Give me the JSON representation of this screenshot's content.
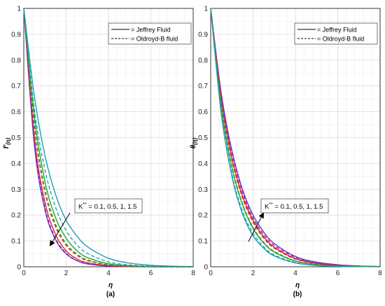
{
  "figure": {
    "panels": [
      {
        "id": "a",
        "caption": "(a)",
        "xlabel": "η",
        "ylabel_main": "f'",
        "ylabel_sub": "(η)",
        "annotation": {
          "text_base": "K",
          "text_sup": "**",
          "text_rest": " = 0.1, 0.5, 1, 1.5"
        }
      },
      {
        "id": "b",
        "caption": "(b)",
        "xlabel": "η",
        "ylabel_main": "θ",
        "ylabel_sub": "(η)",
        "annotation": {
          "text_base": "K",
          "text_sup": "**",
          "text_rest": " = 0.1, 0.5, 1, 1.5"
        }
      }
    ],
    "legend": {
      "entries": [
        {
          "label": "= Jeffrey Fluid",
          "style": "solid"
        },
        {
          "label": "= Oldroyd-B fluid",
          "style": "dashed"
        }
      ]
    },
    "colors": {
      "k1": "#7b2fbf",
      "k2": "#d62728",
      "k3": "#2ca02c",
      "k4": "#1f9fb4",
      "axis": "#333333",
      "grid": "#dddddd"
    }
  },
  "chart_data": [
    {
      "type": "line",
      "panel": "a",
      "xlabel": "η",
      "ylabel": "f'(η)",
      "xlim": [
        0,
        8
      ],
      "ylim": [
        0,
        1
      ],
      "xticks": [
        0,
        2,
        4,
        6,
        8
      ],
      "yticks": [
        0,
        0.1,
        0.2,
        0.3,
        0.4,
        0.5,
        0.6,
        0.7,
        0.8,
        0.9,
        1
      ],
      "grid": true,
      "legend_position": "top-right",
      "x": [
        0,
        0.5,
        1,
        1.5,
        2,
        2.5,
        3,
        4,
        5,
        6,
        7,
        8
      ],
      "series": [
        {
          "name": "K** = 0.1 Jeffrey Fluid",
          "values": [
            1,
            0.47,
            0.22,
            0.105,
            0.05,
            0.024,
            0.011,
            0.0025,
            0.0006,
            0.0001,
            0,
            0
          ]
        },
        {
          "name": "K** = 0.5 Jeffrey Fluid",
          "values": [
            1,
            0.5,
            0.25,
            0.125,
            0.062,
            0.031,
            0.016,
            0.004,
            0.001,
            0.0003,
            0.0001,
            0
          ]
        },
        {
          "name": "K** = 1 Jeffrey Fluid",
          "values": [
            1,
            0.58,
            0.33,
            0.19,
            0.11,
            0.063,
            0.036,
            0.012,
            0.004,
            0.0013,
            0.0004,
            0.0001
          ]
        },
        {
          "name": "K** = 1.5 Jeffrey Fluid",
          "values": [
            1,
            0.66,
            0.43,
            0.28,
            0.18,
            0.12,
            0.078,
            0.033,
            0.014,
            0.006,
            0.0025,
            0.001
          ]
        },
        {
          "name": "K** = 0.1 Oldroyd-B fluid",
          "values": [
            1,
            0.48,
            0.23,
            0.11,
            0.053,
            0.025,
            0.012,
            0.003,
            0.0007,
            0.0002,
            0,
            0
          ]
        },
        {
          "name": "K** = 0.5 Oldroyd-B fluid",
          "values": [
            1,
            0.54,
            0.29,
            0.155,
            0.083,
            0.045,
            0.024,
            0.007,
            0.002,
            0.0006,
            0.0002,
            0
          ]
        },
        {
          "name": "K** = 1 Oldroyd-B fluid",
          "values": [
            1,
            0.55,
            0.3,
            0.165,
            0.09,
            0.05,
            0.027,
            0.008,
            0.0024,
            0.0007,
            0.0002,
            0.0001
          ]
        },
        {
          "name": "K** = 1.5 Oldroyd-B fluid",
          "values": [
            1,
            0.61,
            0.375,
            0.23,
            0.14,
            0.086,
            0.052,
            0.019,
            0.007,
            0.0026,
            0.001,
            0.0003
          ]
        }
      ]
    },
    {
      "type": "line",
      "panel": "b",
      "xlabel": "η",
      "ylabel": "θ(η)",
      "xlim": [
        0,
        8
      ],
      "ylim": [
        0,
        1
      ],
      "xticks": [
        0,
        2,
        4,
        6,
        8
      ],
      "yticks": [
        0,
        0.1,
        0.2,
        0.3,
        0.4,
        0.5,
        0.6,
        0.7,
        0.8,
        0.9,
        1
      ],
      "grid": true,
      "legend_position": "top-right",
      "x": [
        0,
        0.5,
        1,
        1.5,
        2,
        2.5,
        3,
        4,
        5,
        6,
        7,
        8
      ],
      "series": [
        {
          "name": "K** = 0.1 Jeffrey Fluid",
          "values": [
            1,
            0.67,
            0.45,
            0.3,
            0.2,
            0.135,
            0.09,
            0.04,
            0.018,
            0.008,
            0.003,
            0.001
          ]
        },
        {
          "name": "K** = 0.5 Jeffrey Fluid",
          "values": [
            1,
            0.65,
            0.42,
            0.275,
            0.18,
            0.117,
            0.076,
            0.032,
            0.014,
            0.006,
            0.0025,
            0.001
          ]
        },
        {
          "name": "K** = 1 Jeffrey Fluid",
          "values": [
            1,
            0.62,
            0.385,
            0.24,
            0.148,
            0.092,
            0.057,
            0.022,
            0.009,
            0.0035,
            0.0013,
            0.0005
          ]
        },
        {
          "name": "K** = 1.5 Jeffrey Fluid",
          "values": [
            1,
            0.59,
            0.35,
            0.205,
            0.12,
            0.072,
            0.042,
            0.015,
            0.005,
            0.0018,
            0.0006,
            0.0002
          ]
        },
        {
          "name": "K** = 0.1 Oldroyd-B fluid",
          "values": [
            1,
            0.66,
            0.44,
            0.29,
            0.19,
            0.126,
            0.083,
            0.037,
            0.016,
            0.007,
            0.003,
            0.001
          ]
        },
        {
          "name": "K** = 0.5 Oldroyd-B fluid",
          "values": [
            1,
            0.645,
            0.415,
            0.268,
            0.173,
            0.111,
            0.072,
            0.03,
            0.012,
            0.005,
            0.002,
            0.0008
          ]
        },
        {
          "name": "K** = 1 Oldroyd-B fluid",
          "values": [
            1,
            0.625,
            0.39,
            0.245,
            0.153,
            0.095,
            0.06,
            0.023,
            0.009,
            0.0037,
            0.0014,
            0.0005
          ]
        },
        {
          "name": "K** = 1.5 Oldroyd-B fluid",
          "values": [
            1,
            0.6,
            0.36,
            0.215,
            0.13,
            0.078,
            0.046,
            0.017,
            0.006,
            0.0022,
            0.0008,
            0.0003
          ]
        }
      ]
    }
  ]
}
